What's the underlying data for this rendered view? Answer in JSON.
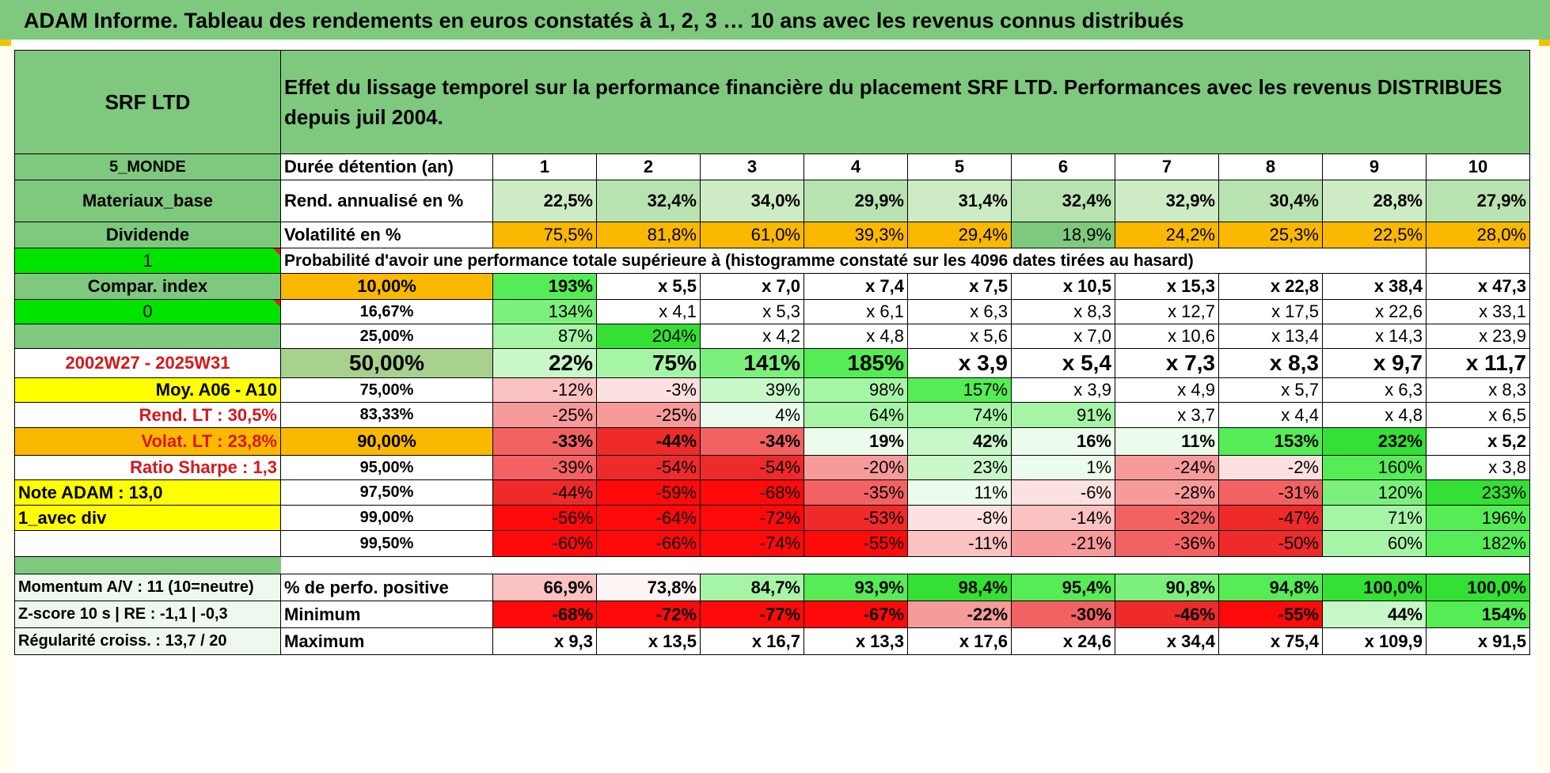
{
  "title": "ADAM Informe. Tableau des rendements en euros constatés à 1, 2, 3 … 10 ans avec les revenus connus distribués",
  "header": {
    "fund": "SRF LTD",
    "description": "Effet du lissage temporel sur la performance financière du placement SRF LTD. Performances avec les revenus DISTRIBUES depuis juil 2004."
  },
  "left": {
    "zone": "5_MONDE",
    "sector": "Materiaux_base",
    "income": "Dividende",
    "flag1": "1",
    "compar": "Compar. index",
    "flag0": "0",
    "period": "2002W27 - 2025W31",
    "moy": "Moy. A06 - A10",
    "rend_lt": "Rend. LT :   30,5%",
    "volat_lt": "Volat. LT :   23,8%",
    "sharpe": "Ratio Sharpe :    1,3",
    "note": "Note ADAM : 13,0",
    "divmode": "1_avec div",
    "momentum": "Momentum A/V : 11 (10=neutre)",
    "zscore": "Z-score 10 s | RE : -1,1 | -0,3",
    "regularite": "Régularité croiss. : 13,7 / 20"
  },
  "labels": {
    "duree": "Durée détention (an)",
    "rend": "Rend. annualisé en %",
    "vol": "Volatilité en %",
    "proba": "Probabilité d'avoir une performance totale supérieure à (histogramme constaté sur les 4096 dates tirées au hasard)",
    "pos": "% de perfo. positive",
    "min": "Minimum",
    "max": "Maximum"
  },
  "years": [
    "1",
    "2",
    "3",
    "4",
    "5",
    "6",
    "7",
    "8",
    "9",
    "10"
  ],
  "rend": [
    "22,5%",
    "32,4%",
    "34,0%",
    "29,9%",
    "31,4%",
    "32,4%",
    "32,9%",
    "30,4%",
    "28,8%",
    "27,9%"
  ],
  "vol": [
    "75,5%",
    "81,8%",
    "61,0%",
    "39,3%",
    "29,4%",
    "18,9%",
    "24,2%",
    "25,3%",
    "22,5%",
    "28,0%"
  ],
  "thresholds": [
    "10,00%",
    "16,67%",
    "25,00%",
    "50,00%",
    "75,00%",
    "83,33%",
    "90,00%",
    "95,00%",
    "97,50%",
    "99,00%",
    "99,50%"
  ],
  "proba_rows": [
    [
      "193%",
      "x 5,5",
      "x 7,0",
      "x 7,4",
      "x 7,5",
      "x 10,5",
      "x 15,3",
      "x 22,8",
      "x 38,4",
      "x 47,3"
    ],
    [
      "134%",
      "x 4,1",
      "x 5,3",
      "x 6,1",
      "x 6,3",
      "x 8,3",
      "x 12,7",
      "x 17,5",
      "x 22,6",
      "x 33,1"
    ],
    [
      "87%",
      "204%",
      "x 4,2",
      "x 4,8",
      "x 5,6",
      "x 7,0",
      "x 10,6",
      "x 13,4",
      "x 14,3",
      "x 23,9"
    ],
    [
      "22%",
      "75%",
      "141%",
      "185%",
      "x 3,9",
      "x 5,4",
      "x 7,3",
      "x 8,3",
      "x 9,7",
      "x 11,7"
    ],
    [
      "-12%",
      "-3%",
      "39%",
      "98%",
      "157%",
      "x 3,9",
      "x 4,9",
      "x 5,7",
      "x 6,3",
      "x 8,3"
    ],
    [
      "-25%",
      "-25%",
      "4%",
      "64%",
      "74%",
      "91%",
      "x 3,7",
      "x 4,4",
      "x 4,8",
      "x 6,5"
    ],
    [
      "-33%",
      "-44%",
      "-34%",
      "19%",
      "42%",
      "16%",
      "11%",
      "153%",
      "232%",
      "x 5,2"
    ],
    [
      "-39%",
      "-54%",
      "-54%",
      "-20%",
      "23%",
      "1%",
      "-24%",
      "-2%",
      "160%",
      "x 3,8"
    ],
    [
      "-44%",
      "-59%",
      "-68%",
      "-35%",
      "11%",
      "-6%",
      "-28%",
      "-31%",
      "120%",
      "233%"
    ],
    [
      "-56%",
      "-64%",
      "-72%",
      "-53%",
      "-8%",
      "-14%",
      "-32%",
      "-47%",
      "71%",
      "196%"
    ],
    [
      "-60%",
      "-66%",
      "-74%",
      "-55%",
      "-11%",
      "-21%",
      "-36%",
      "-50%",
      "60%",
      "182%"
    ]
  ],
  "pos": [
    "66,9%",
    "73,8%",
    "84,7%",
    "93,9%",
    "98,4%",
    "95,4%",
    "90,8%",
    "94,8%",
    "100,0%",
    "100,0%"
  ],
  "min": [
    "-68%",
    "-72%",
    "-77%",
    "-67%",
    "-22%",
    "-30%",
    "-46%",
    "-55%",
    "44%",
    "154%"
  ],
  "max": [
    "x 9,3",
    "x 13,5",
    "x 16,7",
    "x 13,3",
    "x 17,6",
    "x 24,6",
    "x 34,4",
    "x 75,4",
    "x 109,9",
    "x 91,5"
  ],
  "colors": {
    "header_green": "#7ec97e",
    "bright_green": "#00e400",
    "orange": "#fbb800",
    "yellow": "#ffff00",
    "red_label": "#d8161a",
    "strong_red": "#ff1010"
  }
}
